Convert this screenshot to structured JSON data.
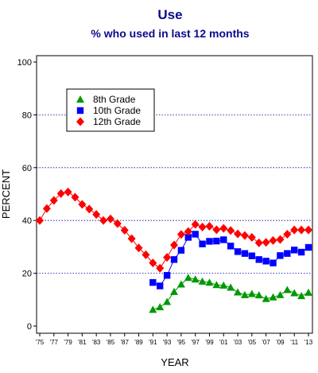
{
  "chart_data": {
    "type": "line",
    "title": "Use",
    "subtitle": "% who used in last 12 months",
    "xlabel": "YEAR",
    "ylabel": "PERCENT",
    "ylim": [
      0,
      100
    ],
    "yticks": [
      "0",
      "20",
      "40",
      "60",
      "80",
      "100"
    ],
    "yticks_values": [
      0,
      20,
      40,
      60,
      80,
      100
    ],
    "xticks": [
      "'75",
      "'77",
      "'79",
      "'81",
      "'83",
      "'85",
      "'87",
      "'89",
      "'91",
      "'93",
      "'95",
      "'97",
      "'99",
      "'01",
      "'03",
      "'05",
      "'07",
      "'09",
      "'11",
      "'13"
    ],
    "xticks_values": [
      1975,
      1977,
      1979,
      1981,
      1983,
      1985,
      1987,
      1989,
      1991,
      1993,
      1995,
      1997,
      1999,
      2001,
      2003,
      2005,
      2007,
      2009,
      2011,
      2013
    ],
    "xlim": [
      1975,
      2013
    ],
    "grid": "horizontal dotted",
    "legend_position": "top-left",
    "series": [
      {
        "name": "8th Grade",
        "color": "#009900",
        "marker": "triangle",
        "x": [
          1991,
          1992,
          1993,
          1994,
          1995,
          1996,
          1997,
          1998,
          1999,
          2000,
          2001,
          2002,
          2003,
          2004,
          2005,
          2006,
          2007,
          2008,
          2009,
          2010,
          2011,
          2012,
          2013
        ],
        "values": [
          6.2,
          7.2,
          9.2,
          13.0,
          15.8,
          18.3,
          17.7,
          16.9,
          16.5,
          15.6,
          15.4,
          14.6,
          12.8,
          11.8,
          12.2,
          11.7,
          10.3,
          10.9,
          11.8,
          13.7,
          12.5,
          11.4,
          12.7
        ]
      },
      {
        "name": "10th Grade",
        "color": "#0000ff",
        "marker": "square",
        "x": [
          1991,
          1992,
          1993,
          1994,
          1995,
          1996,
          1997,
          1998,
          1999,
          2000,
          2001,
          2002,
          2003,
          2004,
          2005,
          2006,
          2007,
          2008,
          2009,
          2010,
          2011,
          2012,
          2013
        ],
        "values": [
          16.5,
          15.2,
          19.2,
          25.2,
          28.7,
          33.6,
          34.8,
          31.1,
          32.1,
          32.2,
          32.7,
          30.3,
          28.2,
          27.5,
          26.6,
          25.2,
          24.6,
          23.9,
          26.7,
          27.5,
          28.8,
          28.0,
          29.8
        ]
      },
      {
        "name": "12th Grade",
        "color": "#ff0000",
        "marker": "diamond",
        "x": [
          1975,
          1976,
          1977,
          1978,
          1979,
          1980,
          1981,
          1982,
          1983,
          1984,
          1985,
          1986,
          1987,
          1988,
          1989,
          1990,
          1991,
          1992,
          1993,
          1994,
          1995,
          1996,
          1997,
          1998,
          1999,
          2000,
          2001,
          2002,
          2003,
          2004,
          2005,
          2006,
          2007,
          2008,
          2009,
          2010,
          2011,
          2012,
          2013
        ],
        "values": [
          40.0,
          44.5,
          47.6,
          50.2,
          50.8,
          48.8,
          46.1,
          44.3,
          42.3,
          40.0,
          40.6,
          38.8,
          36.3,
          33.1,
          29.6,
          27.0,
          23.9,
          21.9,
          26.0,
          30.7,
          34.7,
          35.8,
          38.5,
          37.5,
          37.8,
          36.5,
          37.0,
          36.2,
          34.9,
          34.3,
          33.6,
          31.5,
          31.7,
          32.4,
          32.8,
          34.8,
          36.4,
          36.4,
          36.4
        ]
      }
    ]
  }
}
